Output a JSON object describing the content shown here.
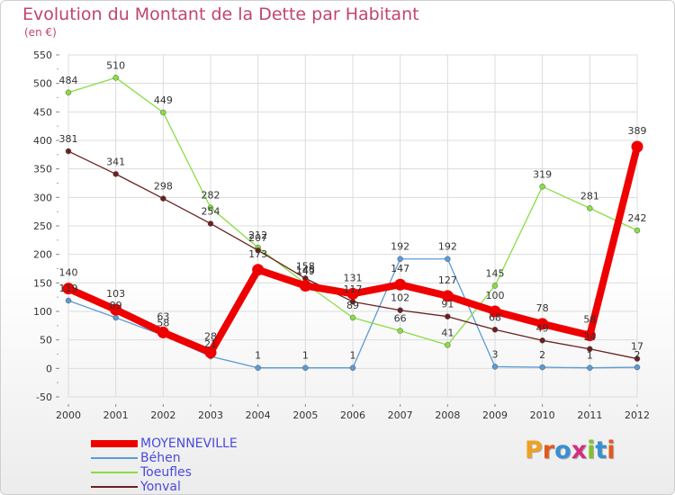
{
  "chart_data": {
    "type": "line",
    "title": "Evolution du Montant de la Dette par Habitant",
    "subtitle": "(en €)",
    "x": [
      "2000",
      "2001",
      "2002",
      "2003",
      "2004",
      "2005",
      "2006",
      "2007",
      "2008",
      "2009",
      "2010",
      "2011",
      "2012"
    ],
    "ylim": [
      -50,
      550
    ],
    "yticks": [
      -50,
      0,
      50,
      100,
      150,
      200,
      250,
      300,
      350,
      400,
      450,
      500,
      550
    ],
    "grid": true,
    "legend_position": "bottom-left",
    "series": [
      {
        "name": "MOYENNEVILLE",
        "color": "#ee0000",
        "values": [
          140,
          103,
          63,
          28,
          173,
          145,
          131,
          147,
          127,
          100,
          78,
          58,
          389
        ]
      },
      {
        "name": "Béhen",
        "color": "#5b9bd5",
        "values": [
          119,
          89,
          58,
          21,
          1,
          1,
          1,
          192,
          192,
          3,
          2,
          1,
          2
        ]
      },
      {
        "name": "Toeufles",
        "color": "#88dd44",
        "values": [
          484,
          510,
          449,
          282,
          212,
          149,
          89,
          66,
          41,
          145,
          319,
          281,
          242
        ]
      },
      {
        "name": "Yonval",
        "color": "#6b2020",
        "values": [
          381,
          341,
          298,
          254,
          207,
          158,
          117,
          102,
          91,
          68,
          49,
          34,
          17
        ]
      }
    ]
  },
  "logo": {
    "text": "Proxiti",
    "letters": [
      "P",
      "r",
      "o",
      "x",
      "i",
      "t",
      "i"
    ]
  }
}
